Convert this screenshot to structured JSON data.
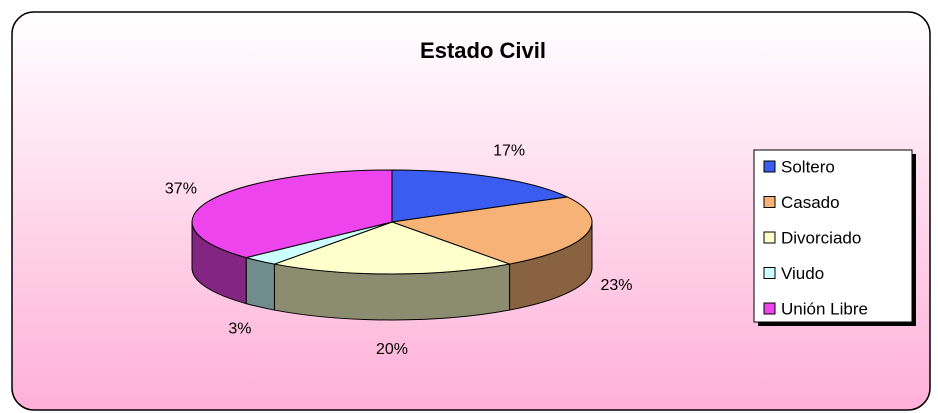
{
  "chart_data": {
    "type": "pie",
    "title": "Estado Civil",
    "categories": [
      "Soltero",
      "Casado",
      "Divorciado",
      "Viudo",
      "Unión Libre"
    ],
    "values": [
      17,
      23,
      20,
      3,
      37
    ],
    "value_labels": [
      "17%",
      "23%",
      "20%",
      "3%",
      "37%"
    ],
    "colors": [
      "#3a5cf0",
      "#f7b277",
      "#ffffcc",
      "#ccffff",
      "#ee44ee"
    ],
    "legend": "right"
  }
}
